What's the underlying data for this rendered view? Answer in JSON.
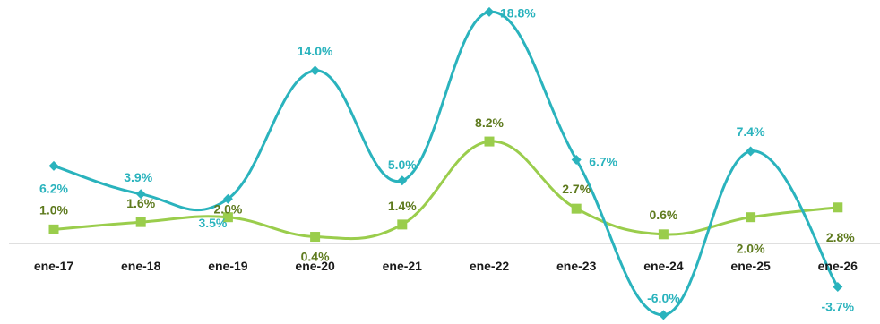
{
  "chart_data": {
    "type": "line",
    "categories": [
      "ene-17",
      "ene-18",
      "ene-19",
      "ene-20",
      "ene-21",
      "ene-22",
      "ene-23",
      "ene-24",
      "ene-25",
      "ene-26"
    ],
    "series": [
      {
        "values": [
          6.2,
          3.9,
          3.5,
          14.0,
          5.0,
          18.8,
          6.7,
          -6.0,
          7.4,
          -3.7
        ],
        "labels": [
          "6.2%",
          "3.9%",
          "3.5%",
          "14.0%",
          "5.0%",
          "18.8%",
          "6.7%",
          "-6.0%",
          "7.4%",
          "-3.7%"
        ],
        "color": "#2ab3bd",
        "marker": "diamond",
        "smooth": true
      },
      {
        "values": [
          1.0,
          1.6,
          2.0,
          0.4,
          1.4,
          8.2,
          2.7,
          0.6,
          2.0,
          2.8
        ],
        "labels": [
          "1.0%",
          "1.6%",
          "2.0%",
          "0.4%",
          "1.4%",
          "8.2%",
          "2.7%",
          "0.6%",
          "2.0%",
          "2.8%"
        ],
        "color": "#9acd4c",
        "label_color": "#5e7a1e",
        "marker": "square",
        "smooth": true
      }
    ],
    "title": "",
    "xlabel": "",
    "ylabel": "",
    "grid": false,
    "legend": "none"
  }
}
